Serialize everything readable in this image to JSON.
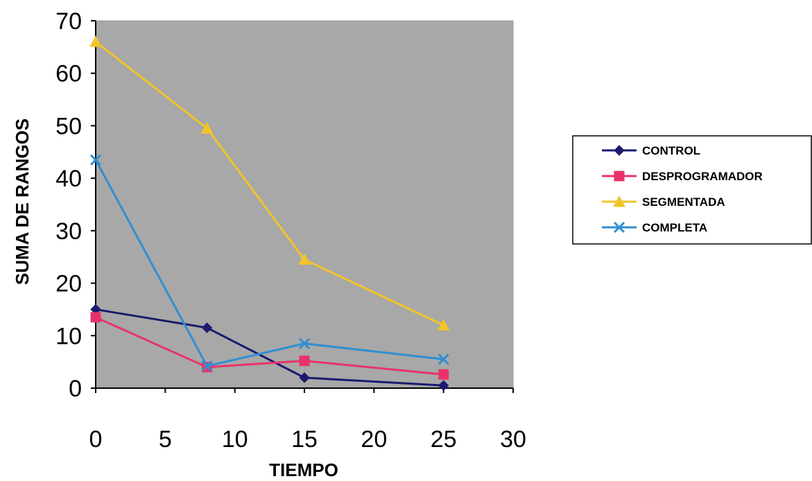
{
  "chart_data": {
    "type": "line",
    "title": "",
    "xlabel": "TIEMPO",
    "ylabel": "SUMA DE RANGOS",
    "xlim": [
      0,
      30
    ],
    "ylim": [
      0,
      70
    ],
    "x_ticks": [
      "0",
      "5",
      "10",
      "15",
      "20",
      "25",
      "30"
    ],
    "y_ticks": [
      "0",
      "10",
      "20",
      "30",
      "40",
      "50",
      "60",
      "70"
    ],
    "x": [
      0,
      8,
      15,
      25
    ],
    "grid": false,
    "plot_background": "#a8a8a8",
    "legend_position": "right",
    "series": [
      {
        "name": "CONTROL",
        "color": "#1a1a6e",
        "marker": "diamond",
        "values": [
          15,
          11.5,
          2,
          0.5
        ]
      },
      {
        "name": "DESPROGRAMADOR",
        "color": "#e8336a",
        "marker": "square",
        "values": [
          13.5,
          4,
          5.2,
          2.6
        ]
      },
      {
        "name": "SEGMENTADA",
        "color": "#f2c42a",
        "marker": "triangle",
        "values": [
          66,
          49.5,
          24.5,
          12
        ]
      },
      {
        "name": "COMPLETA",
        "color": "#2f8fd1",
        "marker": "x",
        "values": [
          43.5,
          4.2,
          8.5,
          5.5
        ]
      }
    ]
  }
}
